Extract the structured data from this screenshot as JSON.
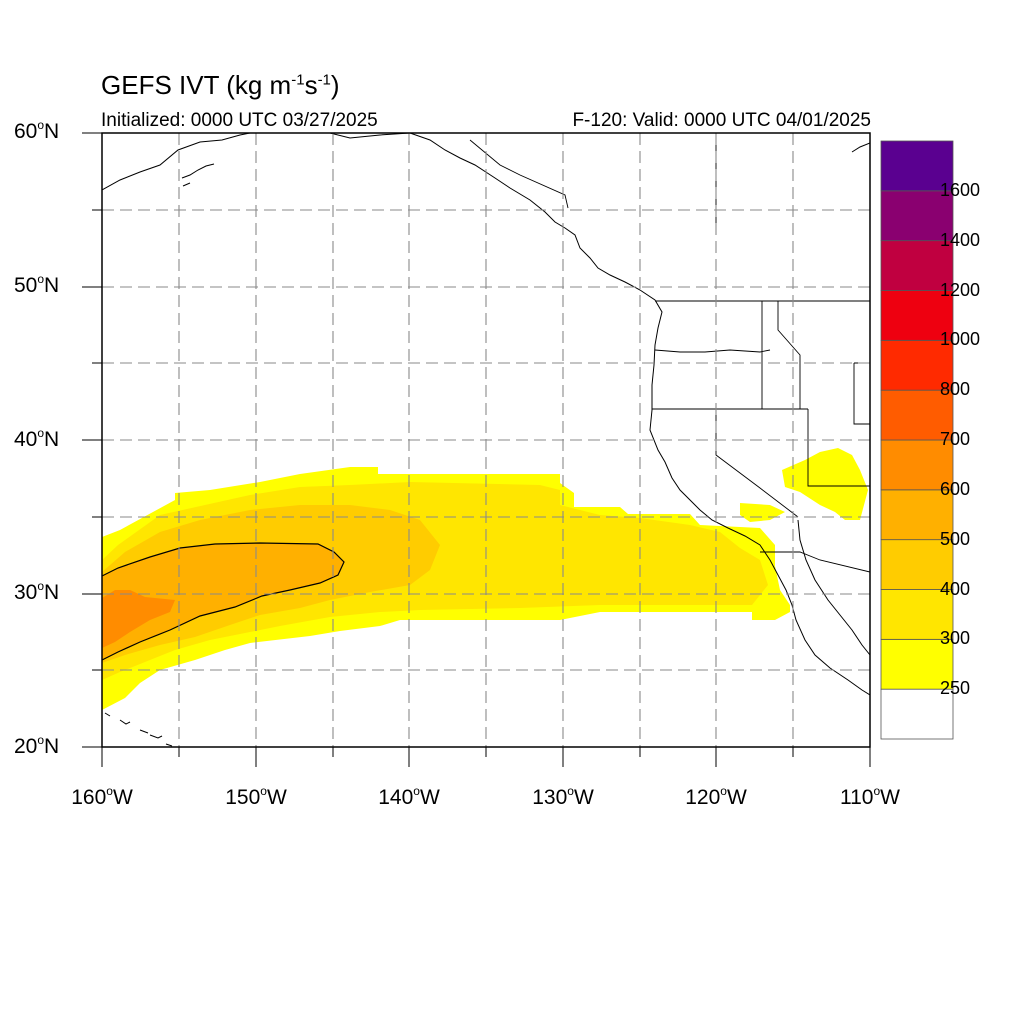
{
  "title": {
    "prefix": "GEFS IVT (kg m",
    "exp1": "-1",
    "mid": "s",
    "exp2": "-1",
    "suffix": ")"
  },
  "subtitle": {
    "left": "Initialized: 0000 UTC 03/27/2025",
    "right": "F-120: Valid: 0000 UTC 04/01/2025"
  },
  "map": {
    "lon_range": [
      -160,
      -110
    ],
    "lat_range": [
      20,
      60
    ],
    "lat_labels": [
      {
        "lat": 60,
        "text": "60",
        "hemi": "N"
      },
      {
        "lat": 50,
        "text": "50",
        "hemi": "N"
      },
      {
        "lat": 40,
        "text": "40",
        "hemi": "N"
      },
      {
        "lat": 30,
        "text": "30",
        "hemi": "N"
      },
      {
        "lat": 20,
        "text": "20",
        "hemi": "N"
      }
    ],
    "lon_labels": [
      {
        "lon": -160,
        "text": "160",
        "hemi": "W"
      },
      {
        "lon": -150,
        "text": "150",
        "hemi": "W"
      },
      {
        "lon": -140,
        "text": "140",
        "hemi": "W"
      },
      {
        "lon": -130,
        "text": "130",
        "hemi": "W"
      },
      {
        "lon": -120,
        "text": "120",
        "hemi": "W"
      },
      {
        "lon": -110,
        "text": "110",
        "hemi": "W"
      }
    ],
    "gridlines": "dashed grey every 5 degrees"
  },
  "colorbar": {
    "labels": [
      "1600",
      "1400",
      "1200",
      "1000",
      "800",
      "700",
      "600",
      "500",
      "400",
      "300",
      "250"
    ],
    "colors": [
      "#ffffff",
      "#ffff00",
      "#ffe600",
      "#ffcc00",
      "#ffb000",
      "#ff8c00",
      "#ff5c00",
      "#ff2a00",
      "#ee0010",
      "#c00040",
      "#8a0070",
      "#5a0090"
    ]
  },
  "ivt_field": {
    "unit": "kg m-1 s-1",
    "contour_level": 500,
    "regions": [
      {
        "level": 250,
        "lat_range": [
          23,
          38
        ],
        "lon_range": [
          -160,
          -115
        ],
        "description": "broad zonal atmospheric river band"
      },
      {
        "level": 300,
        "lat_range": [
          25,
          37
        ],
        "lon_range": [
          -160,
          -117
        ]
      },
      {
        "level": 400,
        "lat_range": [
          26,
          35
        ],
        "lon_range": [
          -160,
          -137
        ]
      },
      {
        "level": 500,
        "lat_range": [
          26,
          33
        ],
        "lon_range": [
          -160,
          -145
        ]
      },
      {
        "level": 600,
        "lat_range": [
          27,
          30
        ],
        "lon_range": [
          -160,
          -155
        ]
      }
    ]
  }
}
